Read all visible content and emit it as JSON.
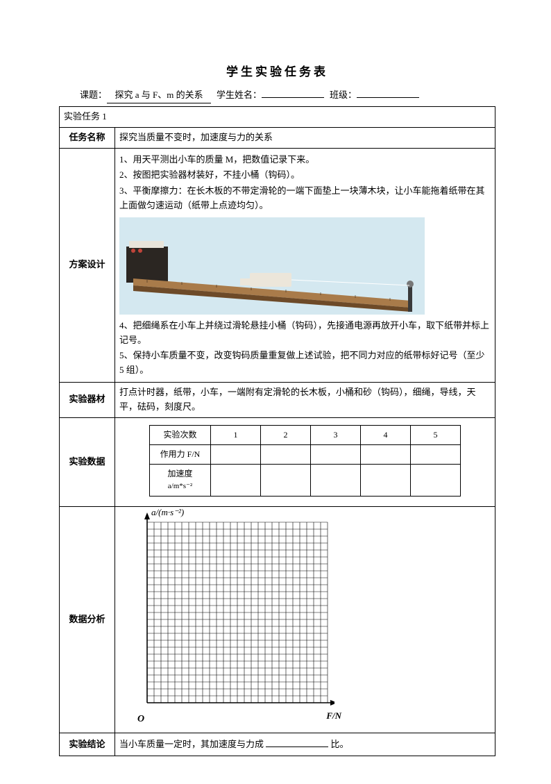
{
  "page_title": "学生实验任务表",
  "header": {
    "topic_label": "课题：",
    "topic_value": "探究 a 与 F、m 的关系",
    "name_label": "学生姓名：",
    "name_value": "",
    "class_label": "班级：",
    "class_value": ""
  },
  "task_header": "实验任务 1",
  "rows": {
    "task_name": {
      "label": "任务名称",
      "text": "探究当质量不变时，加速度与力的关系"
    },
    "design": {
      "label": "方案设计",
      "steps": [
        "1、用天平测出小车的质量 M，把数值记录下来。",
        "2、按图把实验器材装好，不挂小桶（钩码）。",
        "3、平衡摩擦力：在长木板的不带定滑轮的一端下面垫上一块薄木块，让小车能拖着纸带在其上面做匀速运动（纸带上点迹均匀）。"
      ],
      "steps_after": [
        "4、把细绳系在小车上并绕过滑轮悬挂小桶（钩码），先接通电源再放开小车，取下纸带并标上记号。",
        "5、保持小车质量不变，改变钩码质量重复做上述试验，把不同力对应的纸带标好记号（至少 5 组）。"
      ],
      "apparatus_svg": {
        "bg": "#d4e8f0",
        "timer_body": "#2b2622",
        "timer_top": "#e8e4da",
        "board": "#a97b4a",
        "board_dark": "#6d4a28",
        "cart": "#ece6da",
        "pillar": "#3a3a3a"
      }
    },
    "equipment": {
      "label": "实验器材",
      "text": "打点计时器，纸带，小车，一端附有定滑轮的长木板，小桶和砂（钩码），细绳，导线，天平，砝码，刻度尺。"
    },
    "data": {
      "label": "实验数据",
      "headers": [
        "实验次数",
        "1",
        "2",
        "3",
        "4",
        "5"
      ],
      "row_force_label": "作用力 F/N",
      "row_accel_label_line1": "加速度",
      "row_accel_label_line2": "a/m*s⁻²",
      "force_values": [
        "",
        "",
        "",
        "",
        ""
      ],
      "accel_values": [
        "",
        "",
        "",
        "",
        ""
      ]
    },
    "analysis": {
      "label": "数据分析",
      "ylabel": "a/(m·s⁻²)",
      "xlabel": "F/N",
      "origin": "O",
      "grid": {
        "size": 260,
        "divisions": 26,
        "stroke": "#000000",
        "stroke_width": 0.6,
        "axis_width": 1.6
      }
    },
    "conclusion": {
      "label": "实验结论",
      "before": "当小车质量一定时，其加速度与力成",
      "blank": "",
      "after": "比。"
    }
  }
}
